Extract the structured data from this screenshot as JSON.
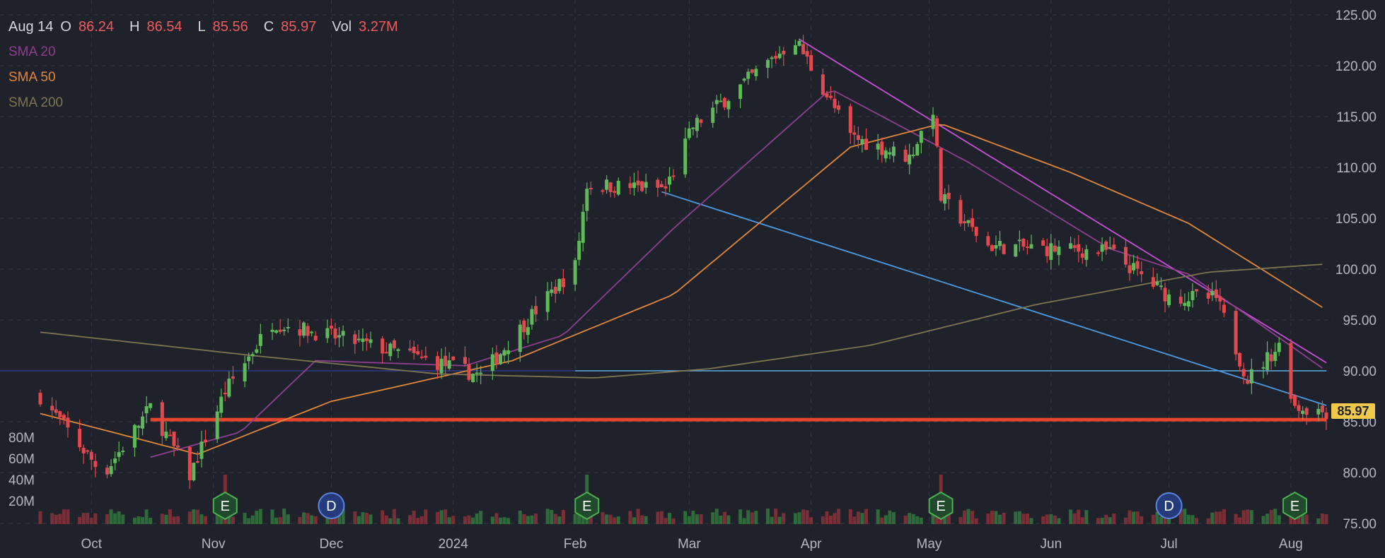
{
  "header": {
    "date": "Aug 14",
    "ohlc": [
      {
        "label": "O",
        "value": "86.24"
      },
      {
        "label": "H",
        "value": "86.54"
      },
      {
        "label": "L",
        "value": "85.56"
      },
      {
        "label": "C",
        "value": "85.97"
      },
      {
        "label": "Vol",
        "value": "3.27M"
      }
    ]
  },
  "indicators": [
    {
      "label": "SMA 20",
      "color": "#8e3f8f"
    },
    {
      "label": "SMA 50",
      "color": "#e0883a"
    },
    {
      "label": "SMA 200",
      "color": "#7d7650"
    }
  ],
  "colors": {
    "up": "#5fb85a",
    "down": "#e0494e",
    "background": "#1f212b"
  },
  "chart_data": {
    "type": "candlestick",
    "y_axis": {
      "ticks": [
        "125.00",
        "120.00",
        "115.00",
        "110.00",
        "105.00",
        "100.00",
        "95.00",
        "90.00",
        "85.00",
        "80.00",
        "75.00"
      ],
      "range": [
        75,
        125
      ]
    },
    "volume_axis": {
      "ticks": [
        "80M",
        "60M",
        "40M",
        "20M"
      ]
    },
    "x_axis": {
      "ticks": [
        "Oct",
        "Nov",
        "Dec",
        "2024",
        "Feb",
        "Mar",
        "Apr",
        "May",
        "Jun",
        "Jul",
        "Aug"
      ]
    },
    "last_price": "85.97",
    "events": [
      {
        "label": "E",
        "type": "earnings",
        "near": "Nov"
      },
      {
        "label": "D",
        "type": "dividend",
        "near": "Dec"
      },
      {
        "label": "E",
        "type": "earnings",
        "near": "Feb"
      },
      {
        "label": "E",
        "type": "earnings",
        "near": "May"
      },
      {
        "label": "D",
        "type": "dividend",
        "near": "Jul"
      },
      {
        "label": "E",
        "type": "earnings",
        "near": "Aug"
      }
    ],
    "key_points": [
      {
        "date": "Sep 22",
        "close": 87.5
      },
      {
        "date": "Oct 8",
        "close": 79.8
      },
      {
        "date": "Oct 20",
        "close": 86.4
      },
      {
        "date": "Oct 30",
        "close": 79.7
      },
      {
        "date": "Nov 8",
        "close": 88.0
      },
      {
        "date": "Nov 20",
        "close": 94.8
      },
      {
        "date": "Dec 15",
        "close": 92.5
      },
      {
        "date": "Jan 2",
        "close": 90.7
      },
      {
        "date": "Jan 12",
        "close": 89.5
      },
      {
        "date": "Jan 25",
        "close": 95.5
      },
      {
        "date": "Feb 5",
        "close": 100.3
      },
      {
        "date": "Feb 8",
        "close": 108.3
      },
      {
        "date": "Feb 28",
        "close": 107.9
      },
      {
        "date": "Mar 6",
        "close": 114.0
      },
      {
        "date": "Apr 1",
        "close": 122.6
      },
      {
        "date": "Apr 15",
        "close": 113.0
      },
      {
        "date": "Apr 30",
        "close": 111.0
      },
      {
        "date": "May 6",
        "close": 115.8
      },
      {
        "date": "May 8",
        "close": 107.0
      },
      {
        "date": "May 20",
        "close": 102.3
      },
      {
        "date": "Jun 20",
        "close": 101.7
      },
      {
        "date": "Jul 5",
        "close": 97.3
      },
      {
        "date": "Jul 17",
        "close": 97.1
      },
      {
        "date": "Jul 25",
        "close": 89.2
      },
      {
        "date": "Aug 2",
        "close": 92.5
      },
      {
        "date": "Aug 6",
        "close": 86.5
      },
      {
        "date": "Aug 14",
        "close": 85.97
      }
    ],
    "sma20_points": [
      {
        "date": "Oct 20",
        "value": 81.5
      },
      {
        "date": "Nov 12",
        "value": 84.0
      },
      {
        "date": "Dec 1",
        "value": 91.0
      },
      {
        "date": "Jan 8",
        "value": 90.5
      },
      {
        "date": "Feb 2",
        "value": 93.5
      },
      {
        "date": "Mar 1",
        "value": 104.0
      },
      {
        "date": "Apr 10",
        "value": 117.7
      },
      {
        "date": "May 15",
        "value": 110.5
      },
      {
        "date": "Jun 20",
        "value": 102.0
      },
      {
        "date": "Jul 10",
        "value": 99.5
      },
      {
        "date": "Aug 14",
        "value": 90.0
      }
    ],
    "sma50_points": [
      {
        "date": "Sep 22",
        "value": 85.8
      },
      {
        "date": "Nov 1",
        "value": 81.8
      },
      {
        "date": "Dec 5",
        "value": 87.0
      },
      {
        "date": "Jan 20",
        "value": 91.0
      },
      {
        "date": "Mar 1",
        "value": 97.5
      },
      {
        "date": "Apr 15",
        "value": 112.0
      },
      {
        "date": "May 8",
        "value": 114.3
      },
      {
        "date": "Jun 10",
        "value": 109.5
      },
      {
        "date": "Jul 10",
        "value": 104.5
      },
      {
        "date": "Aug 14",
        "value": 96.0
      }
    ],
    "sma200_points": [
      {
        "date": "Sep 22",
        "value": 93.8
      },
      {
        "date": "Nov 15",
        "value": 91.5
      },
      {
        "date": "Jan 1",
        "value": 89.7
      },
      {
        "date": "Feb 10",
        "value": 89.3
      },
      {
        "date": "Mar 10",
        "value": 90.2
      },
      {
        "date": "Apr 20",
        "value": 92.5
      },
      {
        "date": "Jun 1",
        "value": 96.5
      },
      {
        "date": "Jul 15",
        "value": 99.7
      },
      {
        "date": "Aug 14",
        "value": 100.5
      }
    ],
    "drawings": [
      {
        "type": "horizontal",
        "color": "#5ab1e8",
        "price": 90.0
      },
      {
        "type": "horizontal",
        "color": "#2f3a8f",
        "price": 90.0
      },
      {
        "type": "horizontal",
        "color": "#e8442c",
        "price": 85.2
      },
      {
        "type": "trendline",
        "color": "#4c9be0",
        "from": {
          "date": "Feb 27",
          "price": 107.6
        },
        "to": {
          "date": "Aug 14",
          "price": 86.6
        }
      },
      {
        "type": "trendline",
        "color": "#c94fd8",
        "from": {
          "date": "Apr 2",
          "price": 122.6
        },
        "to": {
          "date": "Aug 14",
          "price": 90.8
        }
      }
    ]
  }
}
